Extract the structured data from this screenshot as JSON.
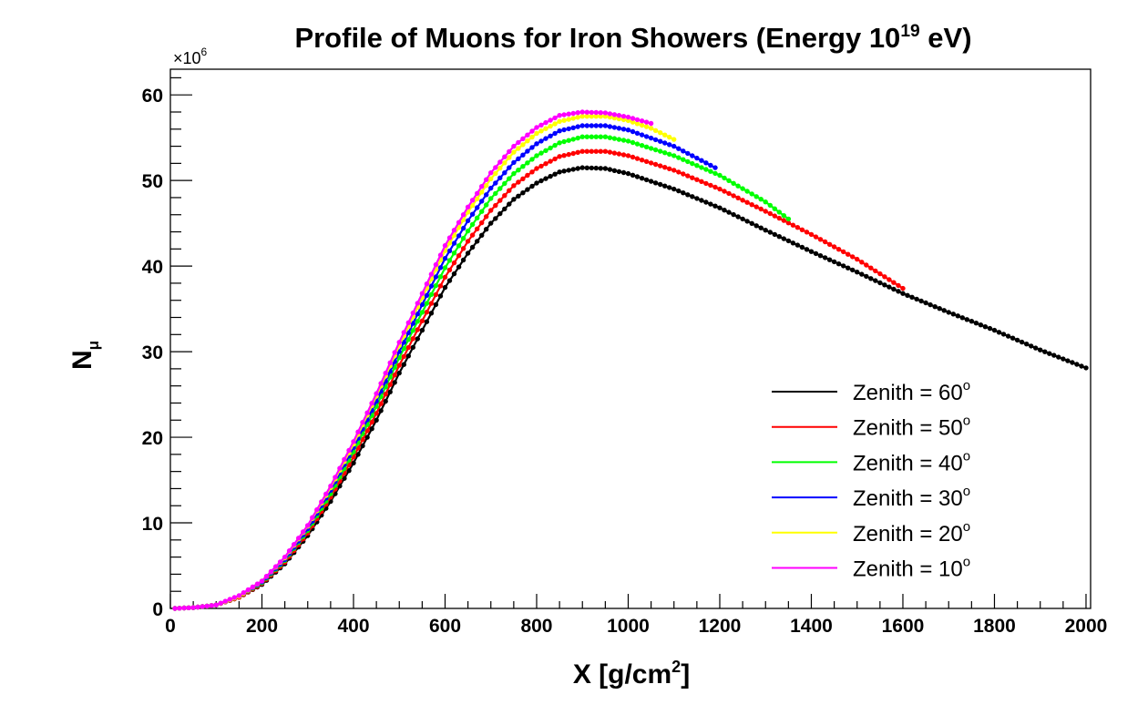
{
  "chart_data": {
    "type": "scatter",
    "title": {
      "main": "Profile of Muons for Iron Showers (Energy 10",
      "sup": "19",
      "tail": " eV)"
    },
    "xlabel": {
      "main": "X [g/cm",
      "sup": "2",
      "tail": "]"
    },
    "ylabel": {
      "main": "N",
      "sub": "μ"
    },
    "y_multiplier": {
      "prefix": "×10",
      "sup": "6"
    },
    "xlim": [
      0,
      2010
    ],
    "ylim": [
      0,
      63
    ],
    "x_ticks": [
      0,
      200,
      400,
      600,
      800,
      1000,
      1200,
      1400,
      1600,
      1800,
      2000
    ],
    "x_tick_labels": [
      "0",
      "200",
      "400",
      "600",
      "800",
      "1000",
      "1200",
      "1400",
      "1600",
      "1800",
      "2000"
    ],
    "y_ticks": [
      0,
      10,
      20,
      30,
      40,
      50,
      60
    ],
    "y_tick_labels": [
      "0",
      "10",
      "20",
      "30",
      "40",
      "50",
      "60"
    ],
    "grid": false,
    "legend_position": "right",
    "series": [
      {
        "name": "Zenith = 60",
        "name_sup": "o",
        "color": "#000000",
        "x_end": 2000,
        "points": [
          [
            10,
            0.0
          ],
          [
            50,
            0.1
          ],
          [
            100,
            0.4
          ],
          [
            150,
            1.3
          ],
          [
            200,
            2.8
          ],
          [
            250,
            5.2
          ],
          [
            300,
            8.5
          ],
          [
            350,
            12.5
          ],
          [
            400,
            17.0
          ],
          [
            450,
            22.0
          ],
          [
            500,
            27.5
          ],
          [
            550,
            32.5
          ],
          [
            600,
            37.5
          ],
          [
            650,
            41.5
          ],
          [
            700,
            45.0
          ],
          [
            750,
            47.8
          ],
          [
            800,
            49.7
          ],
          [
            850,
            51.0
          ],
          [
            900,
            51.5
          ],
          [
            950,
            51.4
          ],
          [
            1000,
            50.8
          ],
          [
            1100,
            49.0
          ],
          [
            1200,
            46.8
          ],
          [
            1300,
            44.2
          ],
          [
            1400,
            41.7
          ],
          [
            1500,
            39.3
          ],
          [
            1600,
            36.8
          ],
          [
            1700,
            34.6
          ],
          [
            1800,
            32.5
          ],
          [
            1900,
            30.2
          ],
          [
            2000,
            28.1
          ]
        ]
      },
      {
        "name": "Zenith = 50",
        "name_sup": "o",
        "color": "#ff0000",
        "x_end": 1600,
        "points": [
          [
            10,
            0.0
          ],
          [
            50,
            0.1
          ],
          [
            100,
            0.4
          ],
          [
            150,
            1.3
          ],
          [
            200,
            2.9
          ],
          [
            250,
            5.4
          ],
          [
            300,
            8.8
          ],
          [
            350,
            13.0
          ],
          [
            400,
            17.7
          ],
          [
            450,
            22.8
          ],
          [
            500,
            28.4
          ],
          [
            550,
            33.6
          ],
          [
            600,
            38.7
          ],
          [
            650,
            42.9
          ],
          [
            700,
            46.5
          ],
          [
            750,
            49.4
          ],
          [
            800,
            51.4
          ],
          [
            850,
            52.8
          ],
          [
            900,
            53.4
          ],
          [
            950,
            53.4
          ],
          [
            1000,
            52.9
          ],
          [
            1100,
            51.2
          ],
          [
            1200,
            49.0
          ],
          [
            1300,
            46.4
          ],
          [
            1400,
            43.7
          ],
          [
            1500,
            40.8
          ],
          [
            1600,
            37.4
          ]
        ]
      },
      {
        "name": "Zenith = 40",
        "name_sup": "o",
        "color": "#00ff00",
        "x_end": 1350,
        "points": [
          [
            10,
            0.0
          ],
          [
            50,
            0.1
          ],
          [
            100,
            0.4
          ],
          [
            150,
            1.4
          ],
          [
            200,
            3.0
          ],
          [
            250,
            5.6
          ],
          [
            300,
            9.1
          ],
          [
            350,
            13.4
          ],
          [
            400,
            18.3
          ],
          [
            450,
            23.6
          ],
          [
            500,
            29.3
          ],
          [
            550,
            34.6
          ],
          [
            600,
            39.8
          ],
          [
            650,
            44.1
          ],
          [
            700,
            47.9
          ],
          [
            750,
            50.8
          ],
          [
            800,
            52.9
          ],
          [
            850,
            54.4
          ],
          [
            900,
            55.1
          ],
          [
            950,
            55.1
          ],
          [
            1000,
            54.6
          ],
          [
            1100,
            52.9
          ],
          [
            1200,
            50.6
          ],
          [
            1300,
            47.5
          ],
          [
            1350,
            45.5
          ]
        ]
      },
      {
        "name": "Zenith = 30",
        "name_sup": "o",
        "color": "#0000ff",
        "x_end": 1190,
        "points": [
          [
            10,
            0.0
          ],
          [
            50,
            0.1
          ],
          [
            100,
            0.4
          ],
          [
            150,
            1.4
          ],
          [
            200,
            3.1
          ],
          [
            250,
            5.7
          ],
          [
            300,
            9.3
          ],
          [
            350,
            13.8
          ],
          [
            400,
            18.8
          ],
          [
            450,
            24.2
          ],
          [
            500,
            30.0
          ],
          [
            550,
            35.5
          ],
          [
            600,
            40.9
          ],
          [
            650,
            45.3
          ],
          [
            700,
            49.1
          ],
          [
            750,
            52.1
          ],
          [
            800,
            54.3
          ],
          [
            850,
            55.8
          ],
          [
            900,
            56.4
          ],
          [
            950,
            56.4
          ],
          [
            1000,
            55.9
          ],
          [
            1100,
            54.0
          ],
          [
            1190,
            51.5
          ]
        ]
      },
      {
        "name": "Zenith = 20",
        "name_sup": "o",
        "color": "#ffff00",
        "x_end": 1100,
        "points": [
          [
            10,
            0.0
          ],
          [
            50,
            0.1
          ],
          [
            100,
            0.4
          ],
          [
            150,
            1.4
          ],
          [
            200,
            3.2
          ],
          [
            250,
            5.9
          ],
          [
            300,
            9.6
          ],
          [
            350,
            14.1
          ],
          [
            400,
            19.2
          ],
          [
            450,
            24.8
          ],
          [
            500,
            30.7
          ],
          [
            550,
            36.3
          ],
          [
            600,
            41.8
          ],
          [
            650,
            46.3
          ],
          [
            700,
            50.2
          ],
          [
            750,
            53.3
          ],
          [
            800,
            55.5
          ],
          [
            850,
            56.9
          ],
          [
            900,
            57.5
          ],
          [
            950,
            57.5
          ],
          [
            1000,
            57.0
          ],
          [
            1050,
            56.1
          ],
          [
            1100,
            54.8
          ]
        ]
      },
      {
        "name": "Zenith = 10",
        "name_sup": "o",
        "color": "#ff00ff",
        "x_end": 1055,
        "points": [
          [
            10,
            0.0
          ],
          [
            50,
            0.1
          ],
          [
            100,
            0.4
          ],
          [
            150,
            1.5
          ],
          [
            200,
            3.2
          ],
          [
            250,
            6.0
          ],
          [
            300,
            9.7
          ],
          [
            350,
            14.3
          ],
          [
            400,
            19.5
          ],
          [
            450,
            25.1
          ],
          [
            500,
            31.1
          ],
          [
            550,
            36.8
          ],
          [
            600,
            42.4
          ],
          [
            650,
            46.9
          ],
          [
            700,
            50.9
          ],
          [
            750,
            54.0
          ],
          [
            800,
            56.2
          ],
          [
            850,
            57.6
          ],
          [
            900,
            58.0
          ],
          [
            950,
            57.9
          ],
          [
            1000,
            57.4
          ],
          [
            1055,
            56.6
          ]
        ]
      }
    ]
  }
}
